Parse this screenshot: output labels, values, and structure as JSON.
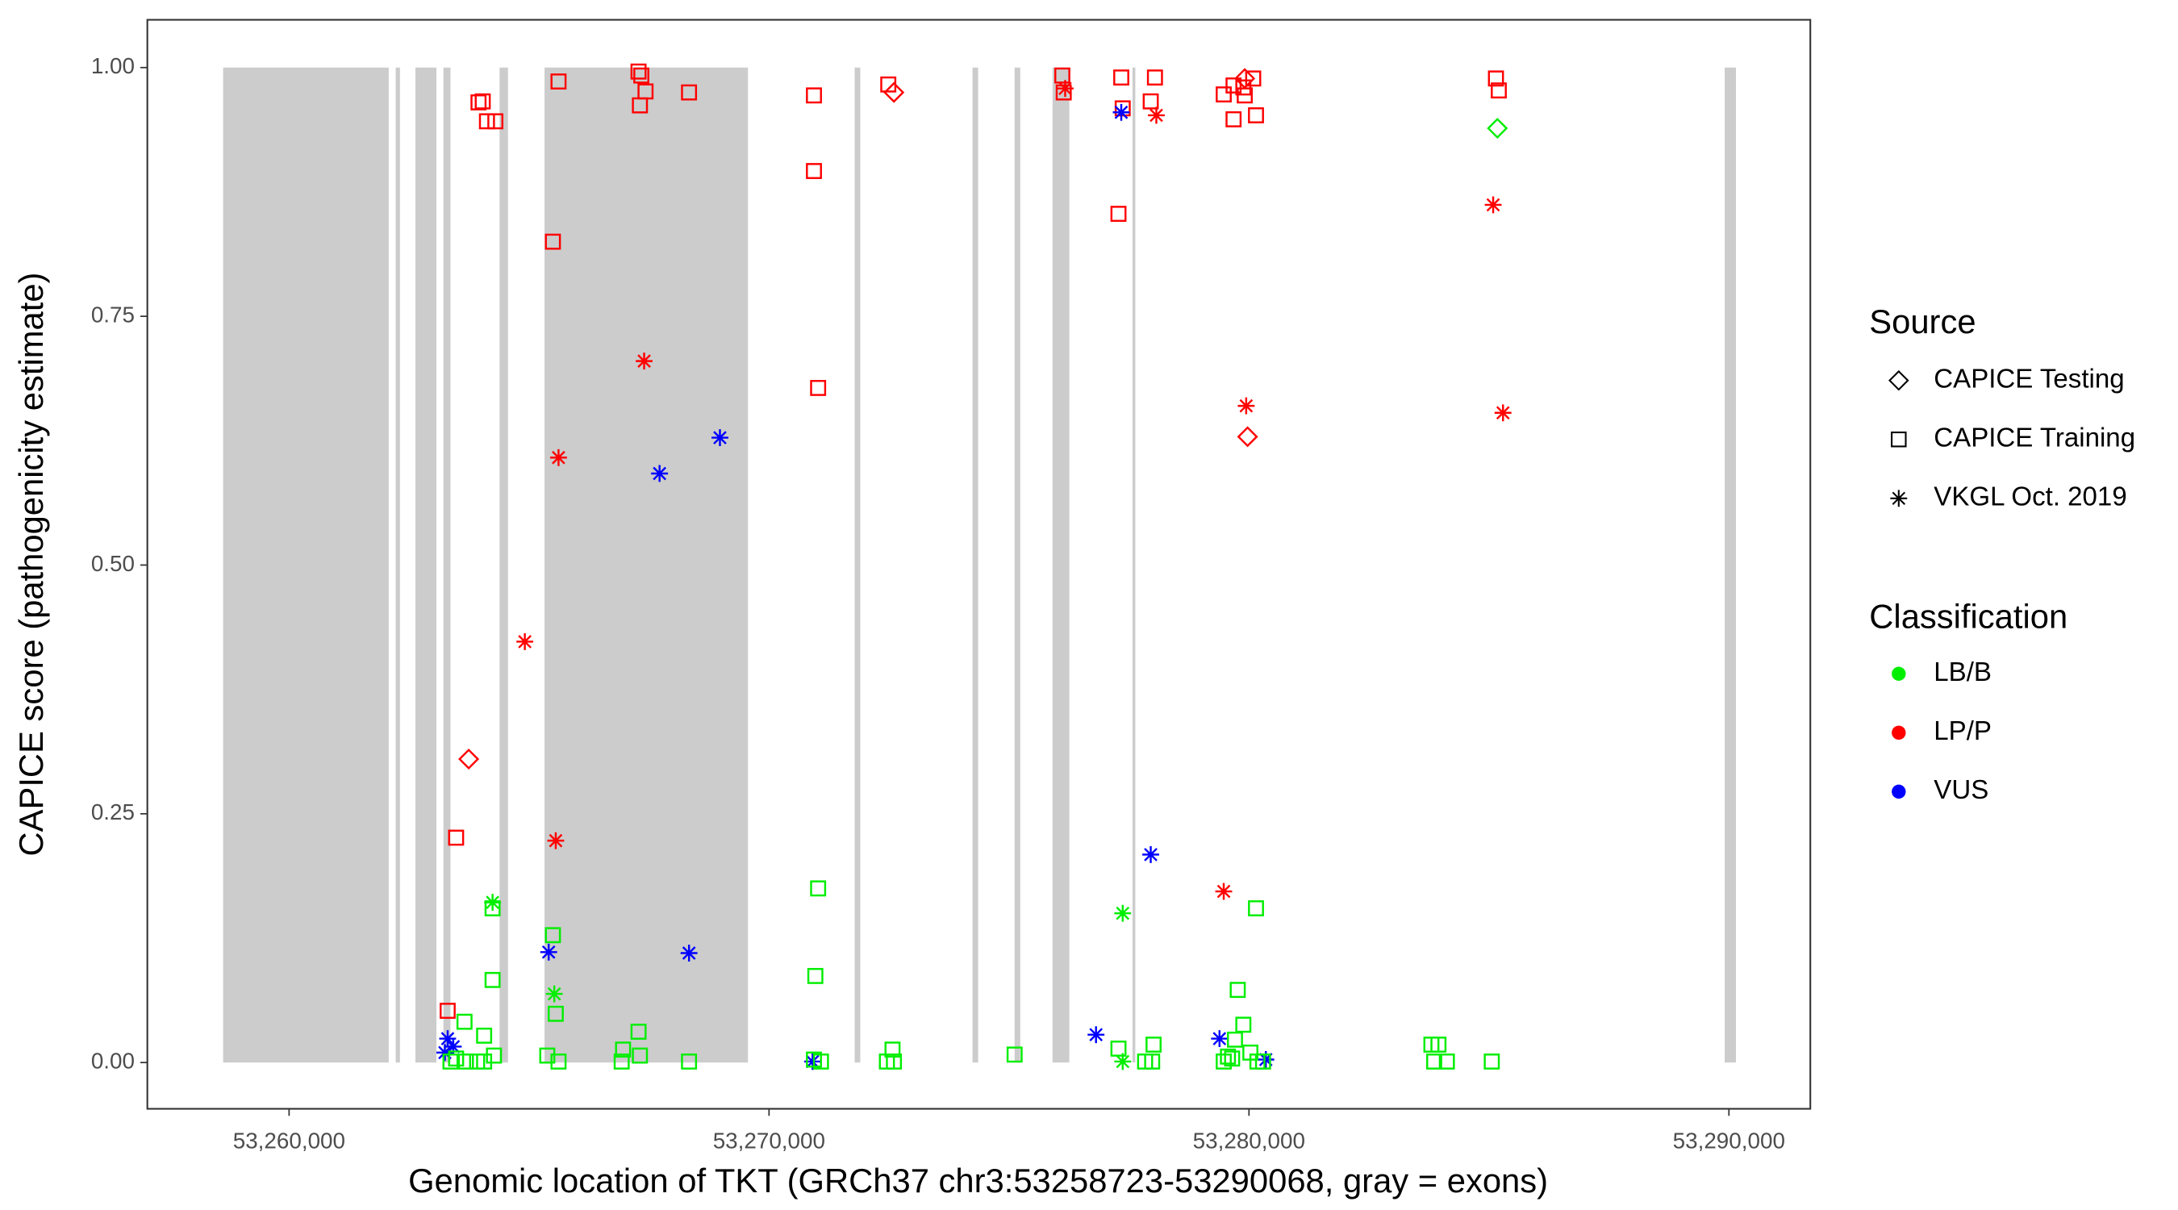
{
  "chart_data": {
    "type": "scatter",
    "xlabel": "Genomic location of TKT (GRCh37 chr3:53258723-53290068, gray = exons)",
    "ylabel": "CAPICE score (pathogenicity estimate)",
    "xlim": [
      53257047,
      53291696
    ],
    "ylim": [
      -0.0465,
      1.048
    ],
    "xticks": [
      {
        "value": 53260000,
        "label": "53,260,000"
      },
      {
        "value": 53270000,
        "label": "53,270,000"
      },
      {
        "value": 53280000,
        "label": "53,280,000"
      },
      {
        "value": 53290000,
        "label": "53,290,000"
      }
    ],
    "yticks": [
      {
        "value": 0,
        "label": "0.00"
      },
      {
        "value": 0.25,
        "label": "0.25"
      },
      {
        "value": 0.5,
        "label": "0.50"
      },
      {
        "value": 0.75,
        "label": "0.75"
      },
      {
        "value": 1,
        "label": "1.00"
      }
    ],
    "exon_color": "#cccccc",
    "exons": [
      [
        53258626,
        53262076
      ],
      [
        53262222,
        53262310
      ],
      [
        53262632,
        53263070
      ],
      [
        53263216,
        53263363
      ],
      [
        53264386,
        53264561
      ],
      [
        53265322,
        53269561
      ],
      [
        53271784,
        53271901
      ],
      [
        53274240,
        53274357
      ],
      [
        53275117,
        53275234
      ],
      [
        53275907,
        53276257
      ],
      [
        53277573,
        53277632
      ],
      [
        53289912,
        53290146
      ]
    ],
    "legend": {
      "source": {
        "title": "Source",
        "entries": [
          {
            "label": "CAPICE Testing",
            "shape": "diamond"
          },
          {
            "label": "CAPICE Training",
            "shape": "square"
          },
          {
            "label": "VKGL Oct. 2019",
            "shape": "star"
          }
        ]
      },
      "classification": {
        "title": "Classification",
        "entries": [
          {
            "label": "LB/B",
            "color": "#00ee00"
          },
          {
            "label": "LP/P",
            "color": "#ff0000"
          },
          {
            "label": "VUS",
            "color": "#0000ff"
          }
        ]
      }
    },
    "series": [
      {
        "shape": "square",
        "color": "#ff0000",
        "x": [
          53263947,
          53264035,
          53264123,
          53264298,
          53265614,
          53267281,
          53267339,
          53267310,
          53267427,
          53268333,
          53270936,
          53270936,
          53271023,
          53265497,
          53263480,
          53263304,
          53272485,
          53276111,
          53277339,
          53278041,
          53276140,
          53277369,
          53277953,
          53277281,
          53279474,
          53279679,
          53279883,
          53280088,
          53279912,
          53279679,
          53280146,
          53285146,
          53285205
        ],
        "y": [
          0.965,
          0.966,
          0.946,
          0.946,
          0.986,
          0.996,
          0.992,
          0.962,
          0.976,
          0.975,
          0.972,
          0.896,
          0.678,
          0.825,
          0.226,
          0.052,
          0.983,
          0.992,
          0.99,
          0.99,
          0.975,
          0.959,
          0.966,
          0.853,
          0.973,
          0.982,
          0.98,
          0.989,
          0.972,
          0.948,
          0.952,
          0.989,
          0.977
        ]
      },
      {
        "shape": "diamond",
        "color": "#ff0000",
        "x": [
          53263743,
          53272602,
          53279971,
          53279912
        ],
        "y": [
          0.305,
          0.975,
          0.629,
          0.989
        ]
      },
      {
        "shape": "star",
        "color": "#ff0000",
        "x": [
          53276170,
          53278070,
          53285088,
          53285293,
          53279942,
          53279474,
          53267398,
          53265614,
          53264912,
          53265556
        ],
        "y": [
          0.979,
          0.952,
          0.862,
          0.653,
          0.66,
          0.172,
          0.705,
          0.608,
          0.423,
          0.223
        ]
      },
      {
        "shape": "star",
        "color": "#0000ff",
        "x": [
          53268977,
          53267719,
          53265409,
          53268333,
          53277339,
          53277953,
          53276813,
          53279386,
          53263304,
          53263421,
          53263246,
          53270907,
          53280351
        ],
        "y": [
          0.628,
          0.592,
          0.111,
          0.11,
          0.955,
          0.209,
          0.028,
          0.024,
          0.024,
          0.016,
          0.01,
          0.001,
          0.003
        ]
      },
      {
        "shape": "star",
        "color": "#00ee00",
        "x": [
          53264240,
          53265526,
          53277369,
          53277369
        ],
        "y": [
          0.161,
          0.069,
          0.15,
          0.001
        ]
      },
      {
        "shape": "diamond",
        "color": "#00ee00",
        "x": [
          53285176
        ],
        "y": [
          0.939
        ]
      },
      {
        "shape": "square",
        "color": "#00ee00",
        "x": [
          53264240,
          53265497,
          53265556,
          53264240,
          53263655,
          53264064,
          53267281,
          53266959,
          53266930,
          53267310,
          53268333,
          53265614,
          53265380,
          53270936,
          53271082,
          53271023,
          53270965,
          53272573,
          53272456,
          53272602,
          53275117,
          53277281,
          53278012,
          53277983,
          53277836,
          53279474,
          53279649,
          53279766,
          53279883,
          53279708,
          53280029,
          53280146,
          53280176,
          53283801,
          53283948,
          53283859,
          53284123,
          53285059,
          53263363,
          53263684,
          53263918,
          53264064,
          53264269,
          53263480,
          53279562,
          53280293
        ],
        "y": [
          0.155,
          0.128,
          0.049,
          0.083,
          0.041,
          0.027,
          0.031,
          0.013,
          0.001,
          0.007,
          0.001,
          0.001,
          0.007,
          0.003,
          0.001,
          0.175,
          0.087,
          0.013,
          0.001,
          0.001,
          0.008,
          0.014,
          0.018,
          0.001,
          0.001,
          0.001,
          0.004,
          0.073,
          0.038,
          0.023,
          0.01,
          0.155,
          0.001,
          0.018,
          0.018,
          0.001,
          0.001,
          0.001,
          0.001,
          0.001,
          0.001,
          0.001,
          0.007,
          0.004,
          0.006,
          0.001
        ]
      }
    ]
  }
}
